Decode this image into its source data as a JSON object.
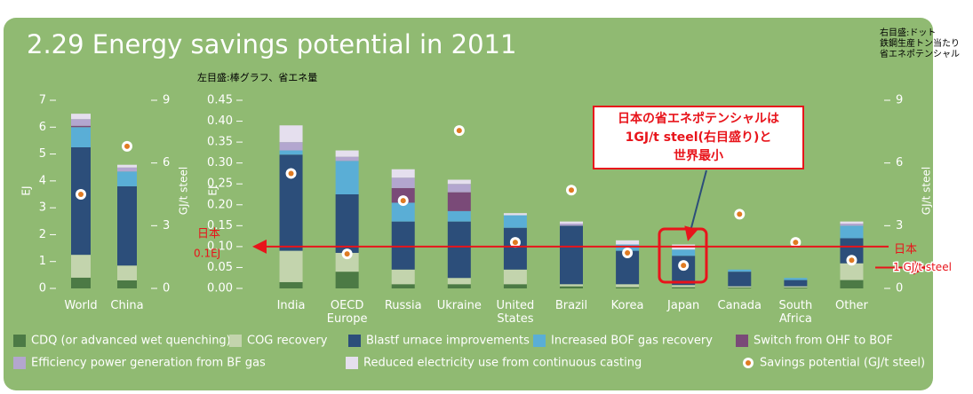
{
  "title": "2.29 Energy savings potential in 2011",
  "left_note": "左目盛:棒グラフ、省エネ量",
  "right_note": [
    "右目盛:ドット",
    "鉄鋼生産トン当たり",
    "省エネポテンシャル"
  ],
  "callout": [
    "日本の省エネポテンシャルは",
    "1GJ/t steel(右目盛り)と",
    "世界最小"
  ],
  "japan_left": {
    "lines": [
      "日本",
      "0.1EJ"
    ],
    "value": 0.1
  },
  "japan_right": {
    "lines": [
      "日本",
      "1 GJ/t steel"
    ],
    "value": 1
  },
  "chart_data": [
    {
      "type": "bar",
      "stacked": true,
      "categories": [
        "World",
        "China"
      ],
      "ylabel": "EJ",
      "ylim": [
        0,
        7
      ],
      "yticks": [
        0,
        1,
        2,
        3,
        4,
        5,
        6,
        7
      ],
      "y2label": "GJ/t steel",
      "y2lim": [
        0,
        9
      ],
      "y2ticks": [
        0,
        3,
        6,
        9
      ],
      "series": [
        {
          "values": [
            0.4,
            0.3
          ]
        },
        {
          "values": [
            0.85,
            0.55
          ]
        },
        {
          "values": [
            4.0,
            2.95
          ]
        },
        {
          "values": [
            0.75,
            0.55
          ]
        },
        {
          "values": [
            0.05,
            0
          ]
        },
        {
          "values": [
            0.25,
            0.15
          ]
        },
        {
          "values": [
            0.2,
            0.1
          ]
        },
        {
          "axis": "y2",
          "values": [
            4.5,
            6.8
          ]
        }
      ]
    },
    {
      "type": "bar",
      "stacked": true,
      "categories": [
        "India",
        "OECD Europe",
        "Russia",
        "Ukraine",
        "United States",
        "Brazil",
        "Korea",
        "Japan",
        "Canada",
        "South Africa",
        "Other"
      ],
      "ylabel": "EJ",
      "ylim": [
        0,
        0.45
      ],
      "yticks": [
        {
          "value": 0,
          "label": "0.00"
        },
        {
          "value": 0.05,
          "label": "0.05"
        },
        {
          "value": 0.1,
          "label": "0.10"
        },
        {
          "value": 0.15,
          "label": "0.15"
        },
        {
          "value": 0.2,
          "label": "0.20"
        },
        {
          "value": 0.25,
          "label": "0.25"
        },
        {
          "value": 0.3,
          "label": "0.30"
        },
        {
          "value": 0.35,
          "label": "0.35"
        },
        {
          "value": 0.4,
          "label": "0.40"
        },
        {
          "value": 0.45,
          "label": "0.45"
        }
      ],
      "y2label": "GJ/t steel",
      "y2lim": [
        0,
        9
      ],
      "y2ticks": [
        0,
        3,
        6,
        9
      ],
      "series": [
        {
          "name": "CDQ (or advanced wet quenching)",
          "color": "#4c7a45",
          "values": [
            0.015,
            0.04,
            0.01,
            0.01,
            0.01,
            0.005,
            0.003,
            0.003,
            0.002,
            0.002,
            0.02
          ]
        },
        {
          "name": "COG recovery",
          "color": "#c3d4ad",
          "values": [
            0.075,
            0.045,
            0.035,
            0.015,
            0.035,
            0.005,
            0.007,
            0.005,
            0.003,
            0.003,
            0.04
          ]
        },
        {
          "name": "Blastf urnace improvements",
          "color": "#2c4e7a",
          "values": [
            0.23,
            0.14,
            0.115,
            0.135,
            0.1,
            0.14,
            0.08,
            0.07,
            0.035,
            0.015,
            0.06
          ]
        },
        {
          "name": "Increased BOF gas recovery",
          "color": "#5aaed6",
          "values": [
            0.01,
            0.08,
            0.045,
            0.025,
            0.03,
            0,
            0.015,
            0.015,
            0.005,
            0.005,
            0.03
          ]
        },
        {
          "name": "Switch from OHF to BOF",
          "color": "#7a4a78",
          "values": [
            0,
            0,
            0.035,
            0.045,
            0,
            0,
            0,
            0,
            0,
            0,
            0
          ]
        },
        {
          "name": "Efficiency power generation from BF gas",
          "color": "#b3a6cf",
          "values": [
            0.02,
            0.01,
            0.025,
            0.02,
            0,
            0.005,
            0,
            0,
            0,
            0,
            0.005
          ]
        },
        {
          "name": "Reduced electricity use from continuous casting",
          "color": "#e5dfee",
          "values": [
            0.04,
            0.015,
            0.02,
            0.01,
            0.005,
            0.005,
            0.01,
            0.012,
            0,
            0,
            0.005
          ]
        },
        {
          "name": "Savings potential (GJ/t steel)",
          "color": "#e07b22",
          "axis": "y2",
          "values": [
            5.5,
            1.65,
            4.2,
            7.55,
            2.2,
            4.7,
            1.7,
            1.1,
            3.55,
            2.2,
            1.35
          ]
        }
      ]
    }
  ]
}
